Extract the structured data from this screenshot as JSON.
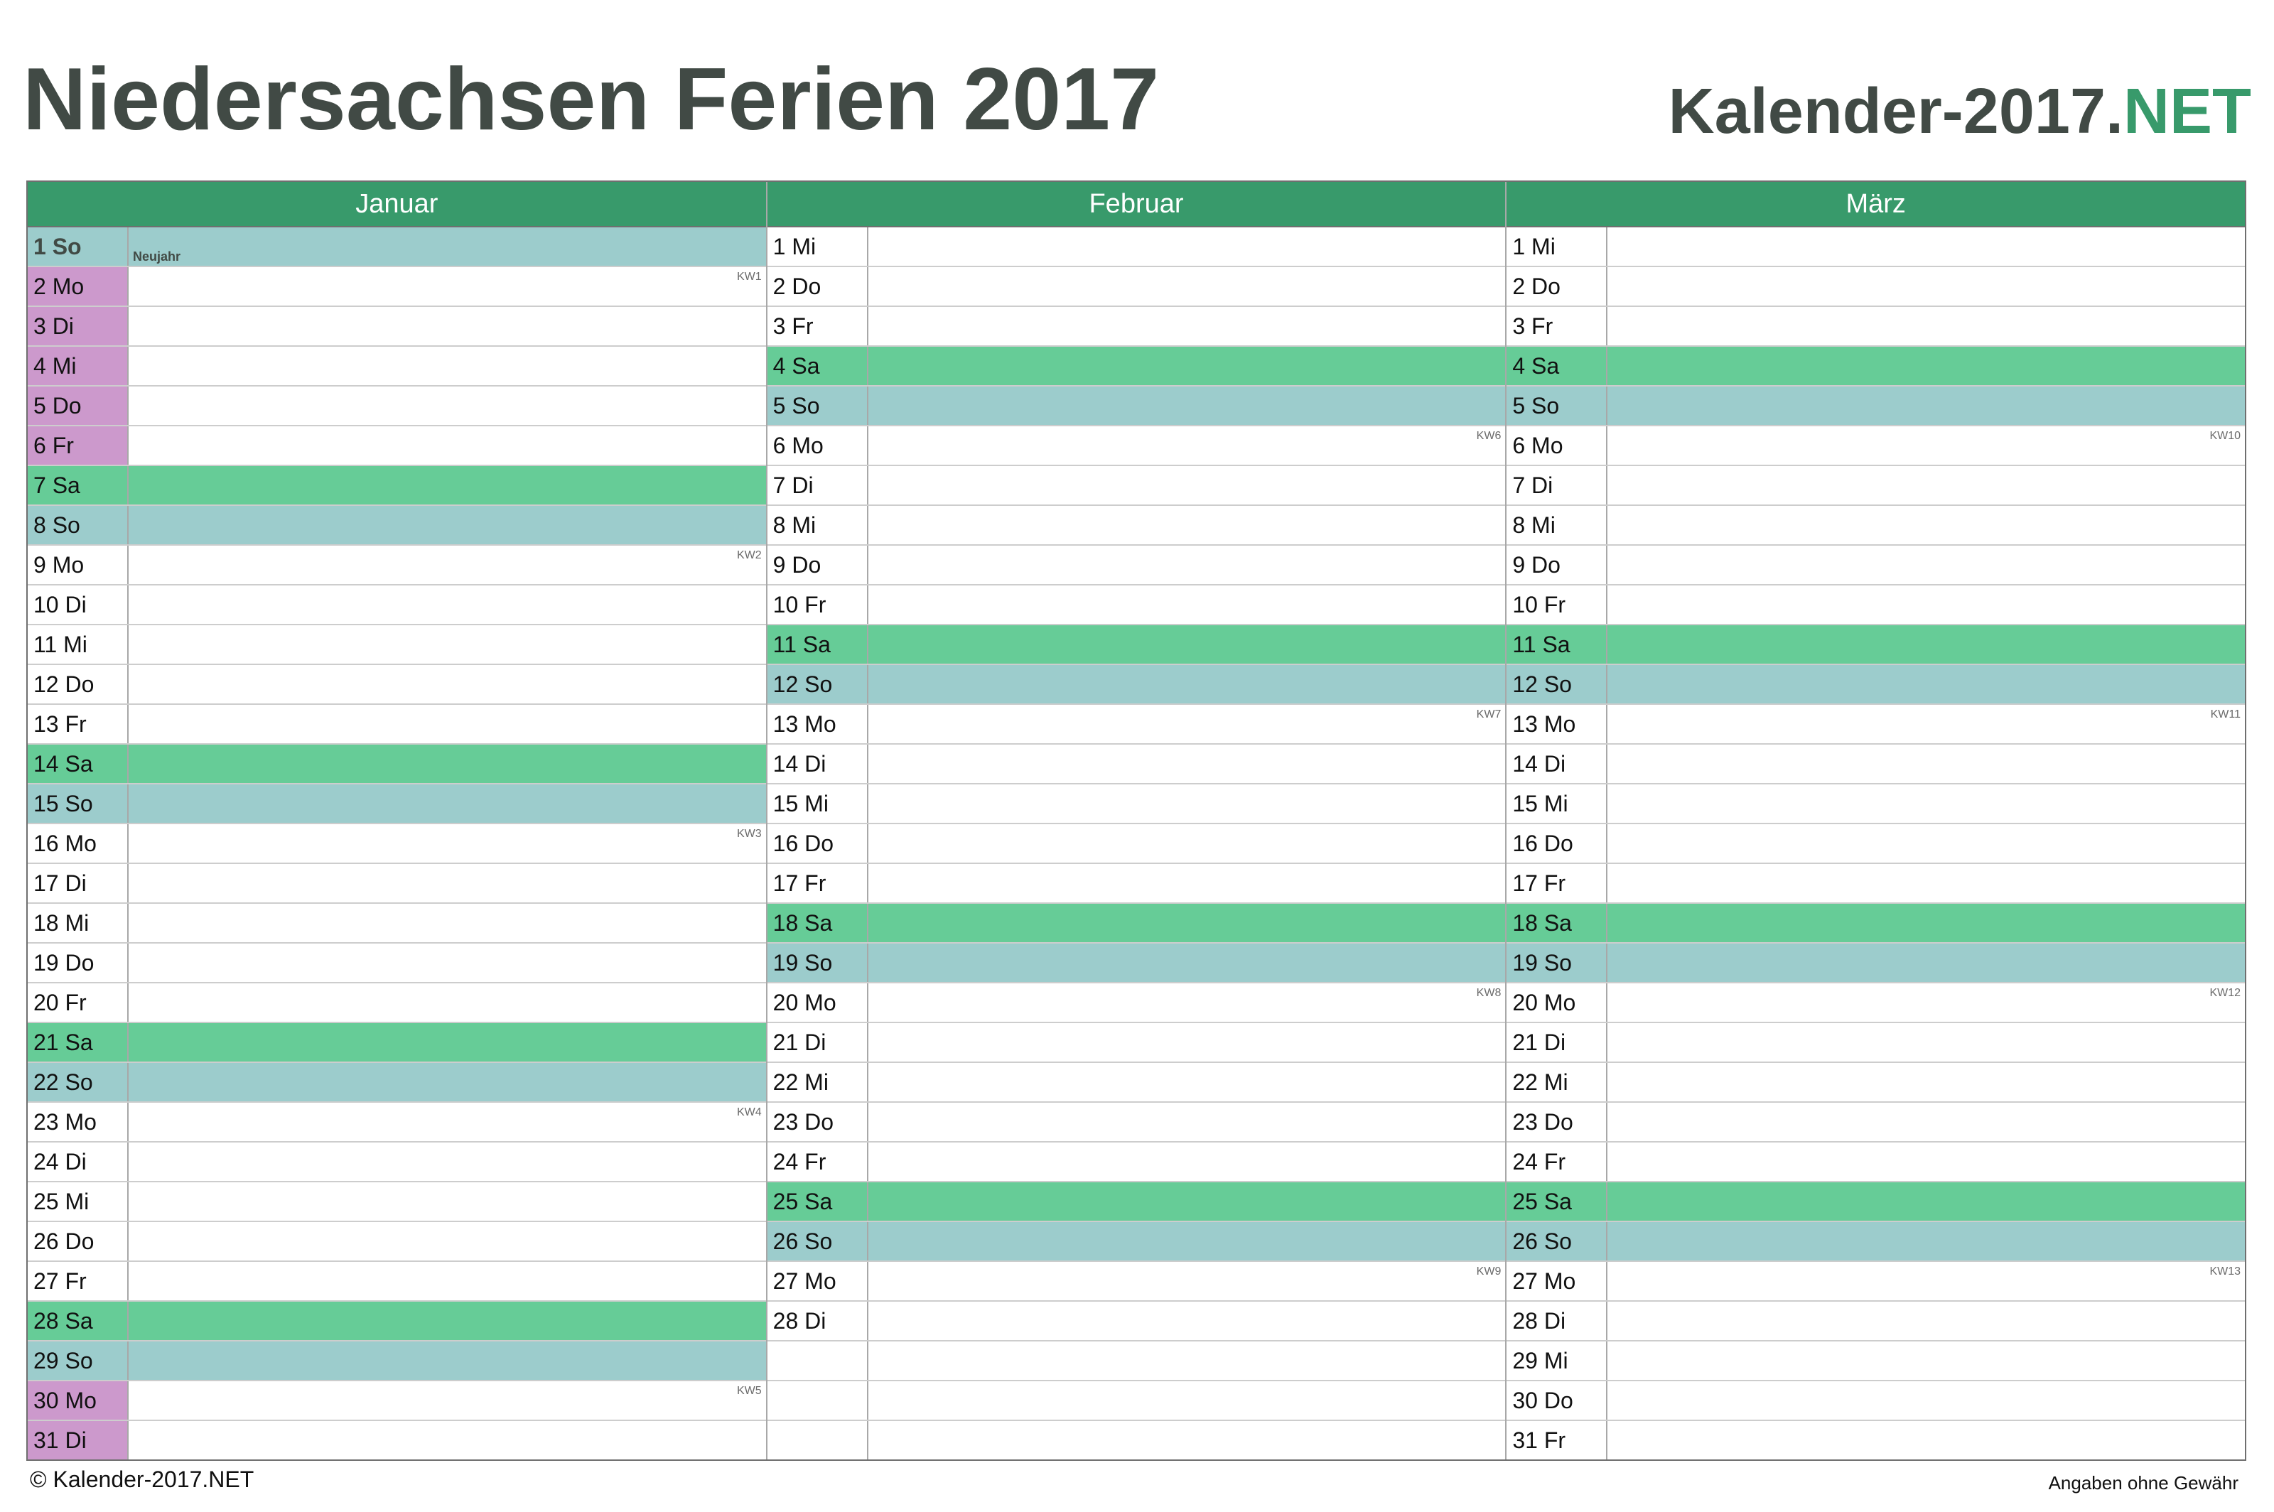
{
  "header": {
    "title": "Niedersachsen Ferien 2017",
    "brand_main": "Kalender-2017.",
    "brand_accent": "NET"
  },
  "colors": {
    "accent": "#389a6b",
    "saturday": "#66cc97",
    "sunday": "#9ccccc",
    "school_holiday": "#cc99cc",
    "title_text": "#414a45"
  },
  "months": [
    {
      "name": "Januar",
      "days": [
        {
          "label": "1 So",
          "type": "hol",
          "holiday": "Neujahr"
        },
        {
          "label": "2 Mo",
          "type": "fer",
          "kw": "KW1"
        },
        {
          "label": "3 Di",
          "type": "fer"
        },
        {
          "label": "4 Mi",
          "type": "fer"
        },
        {
          "label": "5 Do",
          "type": "fer"
        },
        {
          "label": "6 Fr",
          "type": "fer"
        },
        {
          "label": "7 Sa",
          "type": "sat"
        },
        {
          "label": "8 So",
          "type": "sun"
        },
        {
          "label": "9 Mo",
          "kw": "KW2"
        },
        {
          "label": "10 Di"
        },
        {
          "label": "11 Mi"
        },
        {
          "label": "12 Do"
        },
        {
          "label": "13 Fr"
        },
        {
          "label": "14 Sa",
          "type": "sat"
        },
        {
          "label": "15 So",
          "type": "sun"
        },
        {
          "label": "16 Mo",
          "kw": "KW3"
        },
        {
          "label": "17 Di"
        },
        {
          "label": "18 Mi"
        },
        {
          "label": "19 Do"
        },
        {
          "label": "20 Fr"
        },
        {
          "label": "21 Sa",
          "type": "sat"
        },
        {
          "label": "22 So",
          "type": "sun"
        },
        {
          "label": "23 Mo",
          "kw": "KW4"
        },
        {
          "label": "24 Di"
        },
        {
          "label": "25 Mi"
        },
        {
          "label": "26 Do"
        },
        {
          "label": "27 Fr"
        },
        {
          "label": "28 Sa",
          "type": "sat"
        },
        {
          "label": "29 So",
          "type": "sun"
        },
        {
          "label": "30 Mo",
          "type": "fer",
          "kw": "KW5"
        },
        {
          "label": "31 Di",
          "type": "fer"
        }
      ]
    },
    {
      "name": "Februar",
      "days": [
        {
          "label": "1 Mi"
        },
        {
          "label": "2 Do"
        },
        {
          "label": "3 Fr"
        },
        {
          "label": "4 Sa",
          "type": "sat"
        },
        {
          "label": "5 So",
          "type": "sun"
        },
        {
          "label": "6 Mo",
          "kw": "KW6"
        },
        {
          "label": "7 Di"
        },
        {
          "label": "8 Mi"
        },
        {
          "label": "9 Do"
        },
        {
          "label": "10 Fr"
        },
        {
          "label": "11 Sa",
          "type": "sat"
        },
        {
          "label": "12 So",
          "type": "sun"
        },
        {
          "label": "13 Mo",
          "kw": "KW7"
        },
        {
          "label": "14 Di"
        },
        {
          "label": "15 Mi"
        },
        {
          "label": "16 Do"
        },
        {
          "label": "17 Fr"
        },
        {
          "label": "18 Sa",
          "type": "sat"
        },
        {
          "label": "19 So",
          "type": "sun"
        },
        {
          "label": "20 Mo",
          "kw": "KW8"
        },
        {
          "label": "21 Di"
        },
        {
          "label": "22 Mi"
        },
        {
          "label": "23 Do"
        },
        {
          "label": "24 Fr"
        },
        {
          "label": "25 Sa",
          "type": "sat"
        },
        {
          "label": "26 So",
          "type": "sun"
        },
        {
          "label": "27 Mo",
          "kw": "KW9"
        },
        {
          "label": "28 Di"
        },
        {
          "label": ""
        },
        {
          "label": ""
        },
        {
          "label": ""
        }
      ]
    },
    {
      "name": "März",
      "days": [
        {
          "label": "1 Mi"
        },
        {
          "label": "2 Do"
        },
        {
          "label": "3 Fr"
        },
        {
          "label": "4 Sa",
          "type": "sat"
        },
        {
          "label": "5 So",
          "type": "sun"
        },
        {
          "label": "6 Mo",
          "kw": "KW10"
        },
        {
          "label": "7 Di"
        },
        {
          "label": "8 Mi"
        },
        {
          "label": "9 Do"
        },
        {
          "label": "10 Fr"
        },
        {
          "label": "11 Sa",
          "type": "sat"
        },
        {
          "label": "12 So",
          "type": "sun"
        },
        {
          "label": "13 Mo",
          "kw": "KW11"
        },
        {
          "label": "14 Di"
        },
        {
          "label": "15 Mi"
        },
        {
          "label": "16 Do"
        },
        {
          "label": "17 Fr"
        },
        {
          "label": "18 Sa",
          "type": "sat"
        },
        {
          "label": "19 So",
          "type": "sun"
        },
        {
          "label": "20 Mo",
          "kw": "KW12"
        },
        {
          "label": "21 Di"
        },
        {
          "label": "22 Mi"
        },
        {
          "label": "23 Do"
        },
        {
          "label": "24 Fr"
        },
        {
          "label": "25 Sa",
          "type": "sat"
        },
        {
          "label": "26 So",
          "type": "sun"
        },
        {
          "label": "27 Mo",
          "kw": "KW13"
        },
        {
          "label": "28 Di"
        },
        {
          "label": "29 Mi"
        },
        {
          "label": "30 Do"
        },
        {
          "label": "31 Fr"
        }
      ]
    }
  ],
  "footer": {
    "copyright": "© Kalender-2017.NET",
    "disclaimer": "Angaben ohne Gewähr"
  }
}
